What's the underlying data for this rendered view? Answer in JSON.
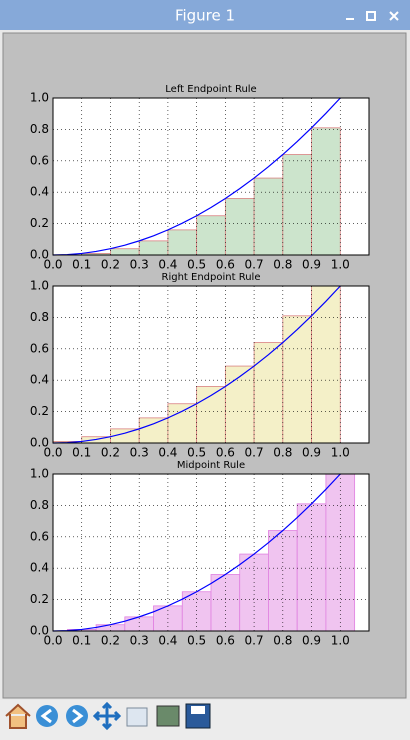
{
  "window": {
    "title": "Figure 1"
  },
  "chart_data": [
    {
      "type": "bar",
      "title": "Left Endpoint Rule",
      "xlim": [
        0,
        1.1
      ],
      "ylim": [
        0,
        1
      ],
      "grid": true,
      "xticks": [
        {
          "value": 0,
          "label": "0.0"
        },
        0.1,
        0.2,
        0.3,
        0.4,
        0.5,
        0.6,
        0.7,
        0.8,
        0.9,
        {
          "value": 1,
          "label": "1.0"
        }
      ],
      "yticks": [
        {
          "value": 0,
          "label": "0.0"
        },
        0.2,
        0.4,
        0.6,
        0.8,
        {
          "value": 1,
          "label": "1.0"
        }
      ],
      "series": [
        {
          "type": "bar",
          "color": "#cce4cc",
          "edgecolor": "#d98080",
          "bins": [
            0,
            0.1,
            0.2,
            0.3,
            0.4,
            0.5,
            0.6,
            0.7,
            0.8,
            0.9,
            1
          ],
          "values": [
            0,
            0.01,
            0.04,
            0.09,
            0.16,
            0.25,
            0.36,
            0.49,
            0.64,
            0.81
          ]
        },
        {
          "type": "line",
          "color": "#0000ff",
          "x": [
            0,
            0.05,
            0.1,
            0.15,
            0.2,
            0.25,
            0.3,
            0.35,
            0.4,
            0.45,
            0.5,
            0.55,
            0.6,
            0.65,
            0.7,
            0.75,
            0.8,
            0.85,
            0.9,
            0.95,
            1
          ],
          "values": [
            0,
            0.0025,
            0.01,
            0.0225,
            0.04,
            0.0625,
            0.09,
            0.1225,
            0.16,
            0.2025,
            0.25,
            0.3025,
            0.36,
            0.4225,
            0.49,
            0.5625,
            0.64,
            0.7225,
            0.81,
            0.9025,
            1
          ]
        }
      ]
    },
    {
      "type": "bar",
      "title": "Right Endpoint Rule",
      "xlim": [
        0,
        1.1
      ],
      "ylim": [
        0,
        1
      ],
      "grid": true,
      "xticks": [
        {
          "value": 0,
          "label": "0.0"
        },
        0.1,
        0.2,
        0.3,
        0.4,
        0.5,
        0.6,
        0.7,
        0.8,
        0.9,
        {
          "value": 1,
          "label": "1.0"
        }
      ],
      "yticks": [
        {
          "value": 0,
          "label": "0.0"
        },
        0.2,
        0.4,
        0.6,
        0.8,
        {
          "value": 1,
          "label": "1.0"
        }
      ],
      "series": [
        {
          "type": "bar",
          "color": "#f4f0c8",
          "edgecolor": "#d98080",
          "bins": [
            0,
            0.1,
            0.2,
            0.3,
            0.4,
            0.5,
            0.6,
            0.7,
            0.8,
            0.9,
            1
          ],
          "values": [
            0.01,
            0.04,
            0.09,
            0.16,
            0.25,
            0.36,
            0.49,
            0.64,
            0.81,
            1
          ]
        },
        {
          "type": "line",
          "color": "#0000ff",
          "x": [
            0,
            0.05,
            0.1,
            0.15,
            0.2,
            0.25,
            0.3,
            0.35,
            0.4,
            0.45,
            0.5,
            0.55,
            0.6,
            0.65,
            0.7,
            0.75,
            0.8,
            0.85,
            0.9,
            0.95,
            1
          ],
          "values": [
            0,
            0.0025,
            0.01,
            0.0225,
            0.04,
            0.0625,
            0.09,
            0.1225,
            0.16,
            0.2025,
            0.25,
            0.3025,
            0.36,
            0.4225,
            0.49,
            0.5625,
            0.64,
            0.7225,
            0.81,
            0.9025,
            1
          ]
        }
      ]
    },
    {
      "type": "bar",
      "title": "Midpoint Rule",
      "xlim": [
        0,
        1.1
      ],
      "ylim": [
        0,
        1
      ],
      "grid": true,
      "xticks": [
        {
          "value": 0,
          "label": "0.0"
        },
        0.1,
        0.2,
        0.3,
        0.4,
        0.5,
        0.6,
        0.7,
        0.8,
        0.9,
        {
          "value": 1,
          "label": "1.0"
        }
      ],
      "yticks": [
        {
          "value": 0,
          "label": "0.0"
        },
        0.2,
        0.4,
        0.6,
        0.8,
        {
          "value": 1,
          "label": "1.0"
        }
      ],
      "series": [
        {
          "type": "bar",
          "color": "#f0c4f0",
          "edgecolor": "#e080e0",
          "bins": [
            0.05,
            0.15,
            0.25,
            0.35,
            0.45,
            0.55,
            0.65,
            0.75,
            0.85,
            0.95,
            1.05
          ],
          "values": [
            0.01,
            0.04,
            0.09,
            0.16,
            0.25,
            0.36,
            0.49,
            0.64,
            0.81,
            1
          ]
        },
        {
          "type": "line",
          "color": "#0000ff",
          "x": [
            0,
            0.05,
            0.1,
            0.15,
            0.2,
            0.25,
            0.3,
            0.35,
            0.4,
            0.45,
            0.5,
            0.55,
            0.6,
            0.65,
            0.7,
            0.75,
            0.8,
            0.85,
            0.9,
            0.95,
            1
          ],
          "values": [
            0,
            0.0025,
            0.01,
            0.0225,
            0.04,
            0.0625,
            0.09,
            0.1225,
            0.16,
            0.2025,
            0.25,
            0.3025,
            0.36,
            0.4225,
            0.49,
            0.5625,
            0.64,
            0.7225,
            0.81,
            0.9025,
            1
          ]
        }
      ]
    }
  ]
}
